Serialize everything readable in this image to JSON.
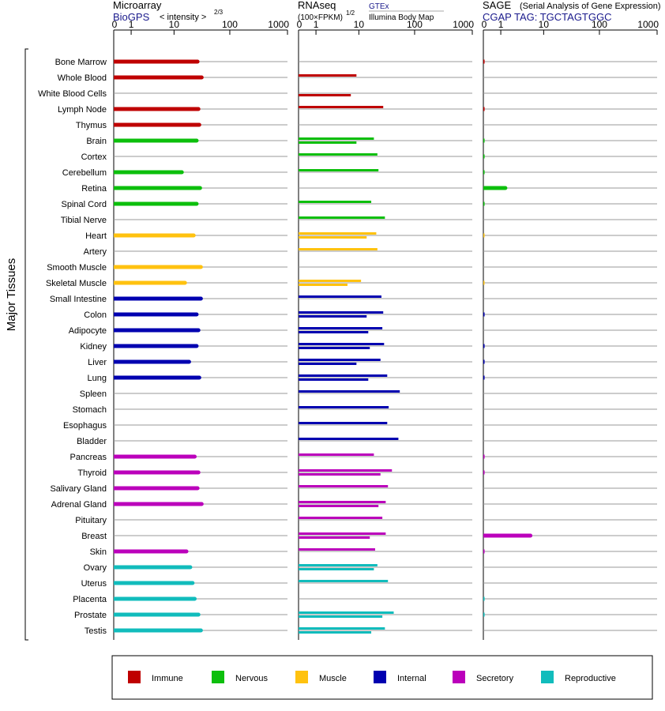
{
  "chart_data": {
    "type": "bar",
    "y_label": "Major Tissues",
    "tissues": [
      "Bone Marrow",
      "Whole Blood",
      "White Blood Cells",
      "Lymph Node",
      "Thymus",
      "Brain",
      "Cortex",
      "Cerebellum",
      "Retina",
      "Spinal Cord",
      "Tibial Nerve",
      "Heart",
      "Artery",
      "Smooth Muscle",
      "Skeletal Muscle",
      "Small Intestine",
      "Colon",
      "Adipocyte",
      "Kidney",
      "Liver",
      "Lung",
      "Spleen",
      "Stomach",
      "Esophagus",
      "Bladder",
      "Pancreas",
      "Thyroid",
      "Salivary Gland",
      "Adrenal Gland",
      "Pituitary",
      "Breast",
      "Skin",
      "Ovary",
      "Uterus",
      "Placenta",
      "Prostate",
      "Testis"
    ],
    "tissue_category": [
      "Immune",
      "Immune",
      "Immune",
      "Immune",
      "Immune",
      "Nervous",
      "Nervous",
      "Nervous",
      "Nervous",
      "Nervous",
      "Nervous",
      "Muscle",
      "Muscle",
      "Muscle",
      "Muscle",
      "Internal",
      "Internal",
      "Internal",
      "Internal",
      "Internal",
      "Internal",
      "Internal",
      "Internal",
      "Internal",
      "Internal",
      "Secretory",
      "Secretory",
      "Secretory",
      "Secretory",
      "Secretory",
      "Secretory",
      "Secretory",
      "Reproductive",
      "Reproductive",
      "Reproductive",
      "Reproductive",
      "Reproductive"
    ],
    "legend": [
      {
        "name": "Immune",
        "color": "#bf0000"
      },
      {
        "name": "Nervous",
        "color": "#0cbf0c"
      },
      {
        "name": "Muscle",
        "color": "#ffc20f"
      },
      {
        "name": "Internal",
        "color": "#0000b0"
      },
      {
        "name": "Secretory",
        "color": "#bb00bb"
      },
      {
        "name": "Reproductive",
        "color": "#11bcbc"
      }
    ],
    "panels": [
      {
        "title": "Microarray",
        "source": "BioGPS",
        "axis_label": "< intensity >",
        "axis_exponent": "2/3",
        "scale": "log1p",
        "ticks": [
          "0",
          "1",
          "10",
          "100",
          "1000"
        ],
        "values": [
          27,
          32,
          null,
          28,
          29,
          26,
          null,
          14,
          30,
          26,
          null,
          23,
          null,
          31,
          16,
          31,
          26,
          28,
          26,
          19,
          29,
          null,
          null,
          null,
          null,
          24,
          28,
          27,
          32,
          null,
          null,
          17,
          20,
          22,
          24,
          28,
          31
        ],
        "values2": [
          null,
          null,
          null,
          null,
          null,
          null,
          null,
          null,
          null,
          null,
          null,
          null,
          null,
          null,
          null,
          null,
          null,
          null,
          null,
          null,
          null,
          null,
          null,
          null,
          null,
          null,
          null,
          null,
          null,
          null,
          null,
          null,
          null,
          null,
          null,
          null,
          null
        ]
      },
      {
        "title": "RNAseq",
        "axis_label": "(100×FPKM)",
        "axis_exponent": "1/2",
        "source": "GTEx",
        "subtitle": "Illumina Body Map",
        "scale": "log1p",
        "ticks": [
          "0",
          "1",
          "10",
          "100",
          "1000"
        ],
        "values": [
          null,
          9,
          null,
          28,
          null,
          19,
          22,
          23,
          null,
          17,
          30,
          21,
          22,
          null,
          11,
          26,
          28,
          27,
          29,
          25,
          33,
          55,
          35,
          33,
          52,
          19,
          40,
          34,
          31,
          27,
          31,
          20,
          22,
          34,
          null,
          43,
          30
        ],
        "values2": [
          null,
          null,
          7,
          null,
          null,
          9,
          null,
          null,
          null,
          null,
          null,
          14,
          null,
          null,
          6,
          null,
          14,
          15,
          16,
          9,
          15,
          null,
          null,
          null,
          null,
          null,
          25,
          null,
          23,
          null,
          16,
          null,
          19,
          null,
          null,
          27,
          17
        ]
      },
      {
        "title": "SAGE",
        "subtitle": "(Serial Analysis of Gene Expression)",
        "tag_label": "CGAP TAG: TGCTAGTGGC",
        "scale": "log1p",
        "ticks": [
          "0",
          "1",
          "10",
          "100",
          "1000"
        ],
        "values": [
          0.05,
          null,
          null,
          0.05,
          null,
          0.05,
          0.05,
          0.05,
          1.4,
          0.05,
          null,
          0.03,
          null,
          null,
          0.03,
          null,
          0.05,
          null,
          0.05,
          0.05,
          0.05,
          null,
          null,
          null,
          null,
          0.05,
          0.05,
          null,
          null,
          null,
          5.5,
          0.05,
          null,
          null,
          0.05,
          0.05,
          null
        ],
        "values2": [
          null,
          null,
          null,
          null,
          null,
          null,
          null,
          null,
          null,
          null,
          null,
          null,
          null,
          null,
          null,
          null,
          null,
          null,
          null,
          null,
          null,
          null,
          null,
          null,
          null,
          null,
          null,
          null,
          null,
          null,
          null,
          null,
          null,
          null,
          null,
          null,
          null
        ]
      }
    ]
  }
}
